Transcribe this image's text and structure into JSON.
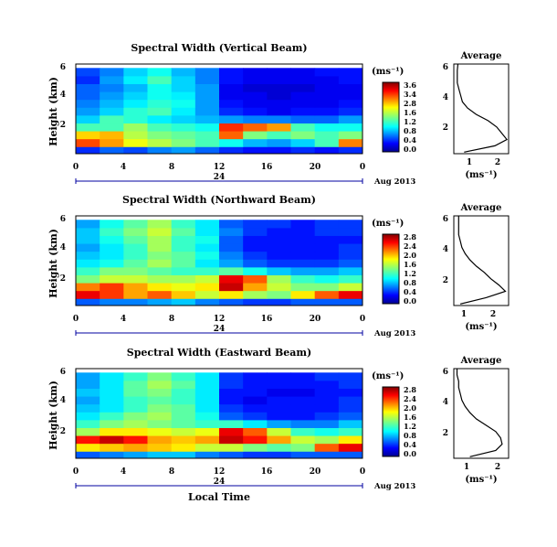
{
  "x_label": "Local Time",
  "panels": [
    {
      "title": "Spectral Width (Vertical Beam)",
      "ylabel": "Height (km)",
      "yticks": [
        "6",
        "4",
        "2"
      ],
      "xticks": [
        "0",
        "4",
        "8",
        "12",
        "16",
        "20",
        "0"
      ],
      "day_label": "24",
      "date_label": "Aug 2013",
      "cbar_unit": "(ms⁻¹)",
      "cbar_ticks": [
        "3.6",
        "3.4",
        "2.8",
        "1.6",
        "1.2",
        "0.8",
        "0.4",
        "0.0"
      ],
      "avg_title": "Average",
      "avg_yticks": [
        "6",
        "4",
        "2"
      ],
      "avg_xticks": [
        "1",
        "2"
      ],
      "avg_xlabel": "(ms⁻¹)"
    },
    {
      "title": "Spectral Width (Northward Beam)",
      "ylabel": "Height (km)",
      "yticks": [
        "6",
        "4",
        "2"
      ],
      "xticks": [
        "0",
        "4",
        "8",
        "12",
        "16",
        "20",
        "0"
      ],
      "day_label": "24",
      "date_label": "Aug 2013",
      "cbar_unit": "(ms⁻¹)",
      "cbar_ticks": [
        "2.8",
        "2.4",
        "2.0",
        "1.6",
        "1.2",
        "0.8",
        "0.4",
        "0.0"
      ],
      "avg_title": "Average",
      "avg_yticks": [
        "6",
        "4",
        "2"
      ],
      "avg_xticks": [
        "1",
        "2"
      ],
      "avg_xlabel": "(ms⁻¹)"
    },
    {
      "title": "Spectral Width (Eastward Beam)",
      "ylabel": "Height (km)",
      "yticks": [
        "6",
        "4",
        "2"
      ],
      "xticks": [
        "0",
        "4",
        "8",
        "12",
        "16",
        "20",
        "0"
      ],
      "day_label": "24",
      "date_label": "Aug 2013",
      "cbar_unit": "(ms⁻¹)",
      "cbar_ticks": [
        "2.8",
        "2.4",
        "2.0",
        "1.6",
        "1.2",
        "0.8",
        "0.4",
        "0.0"
      ],
      "avg_title": "Average",
      "avg_yticks": [
        "6",
        "4",
        "2"
      ],
      "avg_xticks": [
        "1",
        "2"
      ],
      "avg_xlabel": "(ms⁻¹)"
    }
  ],
  "chart_data": [
    {
      "type": "heatmap",
      "title": "Spectral Width (Vertical Beam)",
      "xlabel": "Local Time",
      "ylabel": "Height (km)",
      "xlim": [
        0,
        24
      ],
      "ylim": [
        0.3,
        6
      ],
      "clim": [
        0,
        3.6
      ],
      "colorbar_label": "(ms⁻¹)",
      "colormap": "jet",
      "rows_height_km": [
        0.5,
        1.0,
        1.5,
        2.0,
        2.5,
        3.0,
        3.5,
        4.0,
        4.5,
        5.0,
        5.5
      ],
      "cols_local_time_h": [
        0,
        2,
        4,
        6,
        8,
        10,
        12,
        14,
        16,
        18,
        20,
        22
      ],
      "values": [
        [
          0.6,
          0.8,
          0.7,
          0.9,
          1.0,
          0.8,
          0.6,
          0.5,
          0.5,
          0.6,
          0.5,
          0.6
        ],
        [
          2.9,
          2.6,
          2.2,
          2.0,
          1.8,
          1.6,
          1.4,
          1.1,
          1.0,
          1.2,
          1.6,
          2.7
        ],
        [
          2.4,
          2.5,
          2.0,
          1.8,
          1.7,
          1.6,
          2.8,
          1.8,
          1.6,
          1.8,
          1.6,
          1.8
        ],
        [
          1.6,
          1.6,
          1.9,
          1.6,
          1.5,
          1.4,
          3.0,
          2.8,
          2.6,
          1.6,
          1.4,
          1.4
        ],
        [
          1.2,
          1.6,
          1.5,
          1.3,
          1.2,
          1.1,
          1.0,
          0.9,
          0.9,
          0.8,
          0.8,
          1.0
        ],
        [
          1.0,
          1.2,
          1.5,
          1.6,
          1.3,
          1.0,
          0.6,
          0.5,
          0.4,
          0.5,
          0.5,
          0.6
        ],
        [
          0.9,
          1.1,
          1.3,
          1.5,
          1.4,
          1.0,
          0.5,
          0.4,
          0.4,
          0.4,
          0.4,
          0.5
        ],
        [
          0.8,
          1.0,
          1.2,
          1.4,
          1.3,
          1.0,
          0.4,
          0.4,
          0.3,
          0.4,
          0.4,
          0.4
        ],
        [
          0.8,
          0.9,
          1.1,
          1.4,
          1.2,
          1.0,
          0.4,
          0.3,
          0.3,
          0.3,
          0.4,
          0.4
        ],
        [
          0.6,
          1.0,
          1.3,
          1.6,
          1.2,
          0.9,
          0.5,
          0.4,
          0.4,
          0.4,
          0.4,
          0.5
        ],
        [
          0.7,
          0.9,
          1.2,
          1.4,
          1.1,
          0.9,
          0.5,
          0.4,
          0.4,
          0.4,
          0.5,
          0.5
        ]
      ],
      "average": {
        "heights_km": [
          0.4,
          0.8,
          1.2,
          1.6,
          2.0,
          2.4,
          2.8,
          3.2,
          3.6,
          4.0,
          4.4,
          4.8,
          5.2,
          5.6,
          6.0
        ],
        "values": [
          1.0,
          1.9,
          2.25,
          2.1,
          1.95,
          1.7,
          1.35,
          1.1,
          0.95,
          0.9,
          0.85,
          0.8,
          0.8,
          0.8,
          0.82
        ],
        "xlim": [
          0.7,
          2.3
        ]
      }
    },
    {
      "type": "heatmap",
      "title": "Spectral Width (Northward Beam)",
      "xlabel": "Local Time",
      "ylabel": "Height (km)",
      "xlim": [
        0,
        24
      ],
      "ylim": [
        0.3,
        6
      ],
      "clim": [
        0,
        2.8
      ],
      "colorbar_label": "(ms⁻¹)",
      "colormap": "jet",
      "rows_height_km": [
        0.5,
        1.0,
        1.5,
        2.0,
        2.5,
        3.0,
        3.5,
        4.0,
        4.5,
        5.0,
        5.5
      ],
      "cols_local_time_h": [
        0,
        2,
        4,
        6,
        8,
        10,
        12,
        14,
        16,
        18,
        20,
        22
      ],
      "values": [
        [
          0.6,
          0.7,
          0.7,
          0.8,
          0.9,
          0.7,
          0.6,
          0.5,
          0.5,
          0.6,
          0.6,
          0.6
        ],
        [
          2.5,
          2.3,
          2.0,
          2.2,
          1.9,
          1.6,
          1.8,
          1.5,
          1.4,
          1.8,
          2.2,
          2.5
        ],
        [
          2.1,
          2.3,
          2.0,
          1.8,
          1.7,
          1.8,
          2.6,
          2.0,
          1.6,
          1.4,
          1.4,
          1.6
        ],
        [
          1.4,
          1.6,
          1.6,
          1.5,
          1.5,
          1.6,
          2.5,
          2.2,
          1.5,
          1.2,
          1.1,
          1.2
        ],
        [
          1.2,
          1.4,
          1.4,
          1.3,
          1.2,
          1.2,
          1.3,
          1.1,
          0.9,
          0.8,
          0.8,
          0.9
        ],
        [
          1.0,
          1.1,
          1.3,
          1.5,
          1.3,
          1.0,
          0.8,
          0.6,
          0.5,
          0.5,
          0.5,
          0.6
        ],
        [
          0.9,
          1.0,
          1.2,
          1.4,
          1.3,
          1.1,
          0.7,
          0.5,
          0.4,
          0.4,
          0.4,
          0.5
        ],
        [
          0.8,
          1.0,
          1.2,
          1.5,
          1.2,
          1.0,
          0.6,
          0.4,
          0.4,
          0.4,
          0.4,
          0.5
        ],
        [
          0.9,
          1.1,
          1.3,
          1.5,
          1.2,
          1.1,
          0.6,
          0.4,
          0.4,
          0.4,
          0.4,
          0.4
        ],
        [
          0.9,
          1.2,
          1.4,
          1.6,
          1.3,
          1.0,
          0.7,
          0.5,
          0.4,
          0.4,
          0.5,
          0.5
        ],
        [
          0.8,
          1.1,
          1.3,
          1.5,
          1.2,
          1.0,
          0.6,
          0.5,
          0.5,
          0.4,
          0.5,
          0.5
        ]
      ],
      "average": {
        "heights_km": [
          0.4,
          0.8,
          1.2,
          1.6,
          2.0,
          2.4,
          2.8,
          3.2,
          3.6,
          4.0,
          4.4,
          4.8,
          5.2,
          5.6,
          6.0
        ],
        "values": [
          1.0,
          1.8,
          2.4,
          2.2,
          1.95,
          1.75,
          1.5,
          1.3,
          1.15,
          1.05,
          1.0,
          0.95,
          0.95,
          0.95,
          0.95
        ],
        "xlim": [
          0.8,
          2.5
        ]
      }
    },
    {
      "type": "heatmap",
      "title": "Spectral Width (Eastward Beam)",
      "xlabel": "Local Time",
      "ylabel": "Height (km)",
      "xlim": [
        0,
        24
      ],
      "ylim": [
        0.3,
        6
      ],
      "clim": [
        0,
        2.8
      ],
      "colorbar_label": "(ms⁻¹)",
      "colormap": "jet",
      "rows_height_km": [
        0.5,
        1.0,
        1.5,
        2.0,
        2.5,
        3.0,
        3.5,
        4.0,
        4.5,
        5.0,
        5.5
      ],
      "cols_local_time_h": [
        0,
        2,
        4,
        6,
        8,
        10,
        12,
        14,
        16,
        18,
        20,
        22
      ],
      "values": [
        [
          0.6,
          0.7,
          0.8,
          0.9,
          0.9,
          0.7,
          0.6,
          0.5,
          0.5,
          0.6,
          0.6,
          0.6
        ],
        [
          1.8,
          1.9,
          2.0,
          1.9,
          1.8,
          1.6,
          1.6,
          1.4,
          1.3,
          1.4,
          2.2,
          2.5
        ],
        [
          2.4,
          2.6,
          2.4,
          2.0,
          1.9,
          2.0,
          2.6,
          2.4,
          2.0,
          1.6,
          1.5,
          1.8
        ],
        [
          1.5,
          1.8,
          1.8,
          1.7,
          1.6,
          1.7,
          2.5,
          2.2,
          1.6,
          1.2,
          1.1,
          1.2
        ],
        [
          1.2,
          1.4,
          1.5,
          1.4,
          1.3,
          1.2,
          1.2,
          1.0,
          0.8,
          0.7,
          0.7,
          0.9
        ],
        [
          1.0,
          1.2,
          1.4,
          1.5,
          1.3,
          1.1,
          0.6,
          0.5,
          0.4,
          0.4,
          0.5,
          0.6
        ],
        [
          0.9,
          1.0,
          1.2,
          1.4,
          1.3,
          1.0,
          0.5,
          0.4,
          0.4,
          0.4,
          0.4,
          0.5
        ],
        [
          0.8,
          1.0,
          1.2,
          1.3,
          1.2,
          1.0,
          0.4,
          0.3,
          0.4,
          0.4,
          0.4,
          0.5
        ],
        [
          0.9,
          1.0,
          1.3,
          1.4,
          1.2,
          1.0,
          0.4,
          0.4,
          0.3,
          0.3,
          0.4,
          0.4
        ],
        [
          0.8,
          1.0,
          1.3,
          1.5,
          1.3,
          1.0,
          0.5,
          0.4,
          0.4,
          0.4,
          0.4,
          0.5
        ],
        [
          0.8,
          1.0,
          1.2,
          1.4,
          1.2,
          1.0,
          0.5,
          0.4,
          0.4,
          0.4,
          0.5,
          0.5
        ]
      ],
      "average": {
        "heights_km": [
          0.4,
          0.8,
          1.2,
          1.6,
          2.0,
          2.4,
          2.8,
          3.2,
          3.6,
          4.0,
          4.4,
          4.8,
          5.2,
          5.6,
          6.0
        ],
        "values": [
          1.1,
          1.9,
          2.1,
          2.05,
          1.9,
          1.6,
          1.3,
          1.1,
          0.95,
          0.85,
          0.8,
          0.75,
          0.75,
          0.7,
          0.7
        ],
        "xlim": [
          0.6,
          2.3
        ]
      }
    }
  ]
}
